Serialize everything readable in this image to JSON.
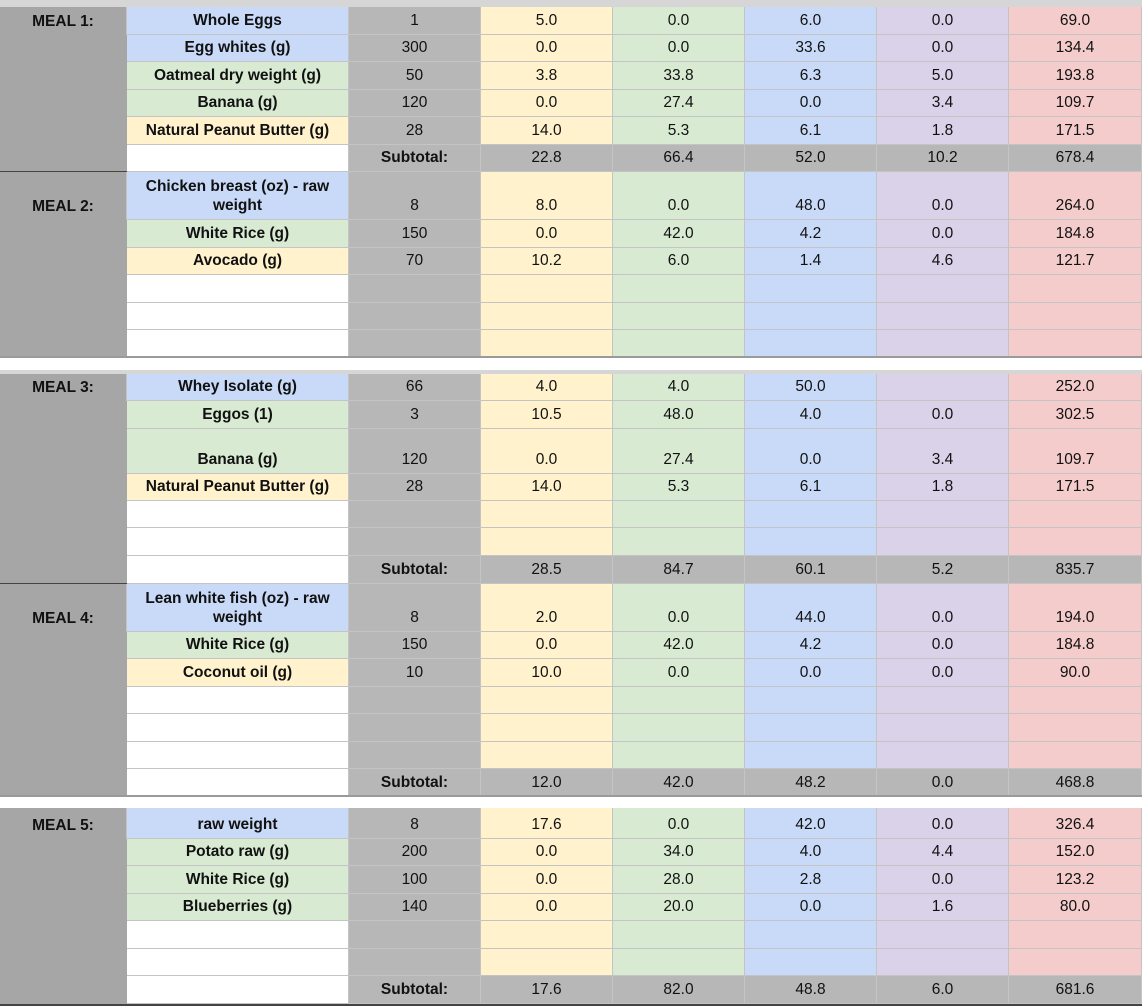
{
  "sections": [
    {
      "meals": [
        {
          "label": "MEAL 1:",
          "items": [
            {
              "name": "Whole Eggs",
              "color": "#c9daf8",
              "values": [
                "1",
                "5.0",
                "0.0",
                "6.0",
                "0.0",
                "69.0"
              ]
            },
            {
              "name": "Egg whites (g)",
              "color": "#c9daf8",
              "values": [
                "300",
                "0.0",
                "0.0",
                "33.6",
                "0.0",
                "134.4"
              ]
            },
            {
              "name": "Oatmeal dry weight (g)",
              "color": "#d9ead3",
              "values": [
                "50",
                "3.8",
                "33.8",
                "6.3",
                "5.0",
                "193.8"
              ]
            },
            {
              "name": "Banana (g)",
              "color": "#d9ead3",
              "values": [
                "120",
                "0.0",
                "27.4",
                "0.0",
                "3.4",
                "109.7"
              ]
            },
            {
              "name": "Natural Peanut Butter (g)",
              "color": "#fff2cc",
              "values": [
                "28",
                "14.0",
                "5.3",
                "6.1",
                "1.8",
                "171.5"
              ]
            }
          ],
          "subtotal": {
            "label": "Subtotal:",
            "values": [
              "22.8",
              "66.4",
              "52.0",
              "10.2",
              "678.4"
            ]
          }
        },
        {
          "label": "MEAL 2:",
          "items": [
            {
              "name": "Chicken breast (oz) - raw weight",
              "color": "#c9daf8",
              "values": [
                "8",
                "8.0",
                "0.0",
                "48.0",
                "0.0",
                "264.0"
              ]
            },
            {
              "name": "White Rice  (g)",
              "color": "#d9ead3",
              "values": [
                "150",
                "0.0",
                "42.0",
                "4.2",
                "0.0",
                "184.8"
              ]
            },
            {
              "name": "Avocado (g)",
              "color": "#fff2cc",
              "values": [
                "70",
                "10.2",
                "6.0",
                "1.4",
                "4.6",
                "121.7"
              ]
            }
          ]
        }
      ]
    },
    {
      "meals": [
        {
          "label": "MEAL 3:",
          "items": [
            {
              "name": "Whey Isolate (g)",
              "color": "#c9daf8",
              "values": [
                "66",
                "4.0",
                "4.0",
                "50.0",
                null,
                "252.0"
              ]
            },
            {
              "name": "Eggos (1)",
              "color": "#d9ead3",
              "values": [
                "3",
                "10.5",
                "48.0",
                "4.0",
                "0.0",
                "302.5"
              ]
            },
            {
              "name": "Banana (g)",
              "color": "#d9ead3",
              "values": [
                "120",
                "0.0",
                "27.4",
                "0.0",
                "3.4",
                "109.7"
              ]
            },
            {
              "name": "Natural Peanut Butter (g)",
              "color": "#fff2cc",
              "values": [
                "28",
                "14.0",
                "5.3",
                "6.1",
                "1.8",
                "171.5"
              ]
            }
          ],
          "subtotal": {
            "label": "Subtotal:",
            "values": [
              "28.5",
              "84.7",
              "60.1",
              "5.2",
              "835.7"
            ]
          }
        },
        {
          "label": "MEAL 4:",
          "items": [
            {
              "name": "Lean white fish (oz) - raw weight",
              "color": "#c9daf8",
              "values": [
                "8",
                "2.0",
                "0.0",
                "44.0",
                "0.0",
                "194.0"
              ]
            },
            {
              "name": "White Rice  (g)",
              "color": "#d9ead3",
              "values": [
                "150",
                "0.0",
                "42.0",
                "4.2",
                "0.0",
                "184.8"
              ]
            },
            {
              "name": "Coconut oil (g)",
              "color": "#fff2cc",
              "values": [
                "10",
                "10.0",
                "0.0",
                "0.0",
                "0.0",
                "90.0"
              ]
            }
          ],
          "subtotal": {
            "label": "Subtotal:",
            "values": [
              "12.0",
              "42.0",
              "48.2",
              "0.0",
              "468.8"
            ]
          }
        }
      ]
    },
    {
      "meals": [
        {
          "label": "MEAL 5:",
          "items": [
            {
              "name": "raw weight",
              "color": "#c9daf8",
              "values": [
                "8",
                "17.6",
                "0.0",
                "42.0",
                "0.0",
                "326.4"
              ]
            },
            {
              "name": "Potato raw (g)",
              "color": "#d9ead3",
              "values": [
                "200",
                "0.0",
                "34.0",
                "4.0",
                "4.4",
                "152.0"
              ]
            },
            {
              "name": "White Rice  (g)",
              "color": "#d9ead3",
              "values": [
                "100",
                "0.0",
                "28.0",
                "2.8",
                "0.0",
                "123.2"
              ]
            },
            {
              "name": "Blueberries (g)",
              "color": "#d9ead3",
              "values": [
                "140",
                "0.0",
                "20.0",
                "0.0",
                "1.6",
                "80.0"
              ]
            }
          ],
          "subtotal": {
            "label": "Subtotal:",
            "values": [
              "17.6",
              "82.0",
              "48.8",
              "6.0",
              "681.6"
            ]
          }
        }
      ]
    }
  ]
}
